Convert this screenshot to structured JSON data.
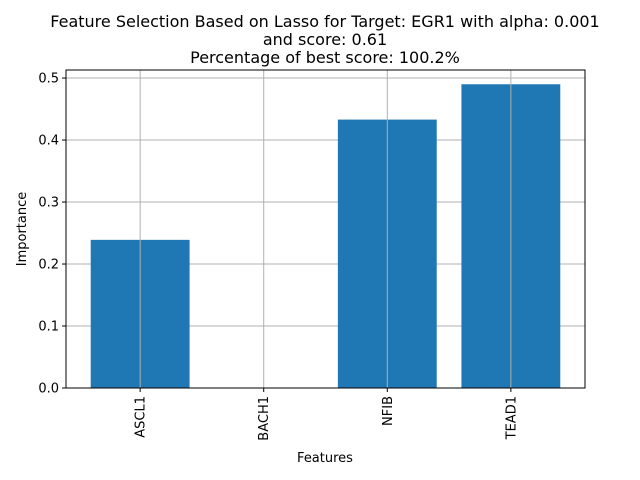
{
  "chart_data": {
    "type": "bar",
    "title_lines": [
      "Feature Selection Based on Lasso for Target: EGR1 with alpha: 0.001",
      "and score: 0.61",
      "Percentage of best score: 100.2%"
    ],
    "categories": [
      "ASCL1",
      "BACH1",
      "NFIB",
      "TEAD1"
    ],
    "values": [
      0.239,
      0.0,
      0.433,
      0.49
    ],
    "xlabel": "Features",
    "ylabel": "Importance",
    "ylim": [
      0,
      0.513
    ],
    "yticks": [
      0.0,
      0.1,
      0.2,
      0.3,
      0.4,
      0.5
    ],
    "ytick_labels": [
      "0.0",
      "0.1",
      "0.2",
      "0.3",
      "0.4",
      "0.5"
    ],
    "grid": true,
    "bar_color": "#1f77b4",
    "grid_color": "#b0b0b0"
  }
}
